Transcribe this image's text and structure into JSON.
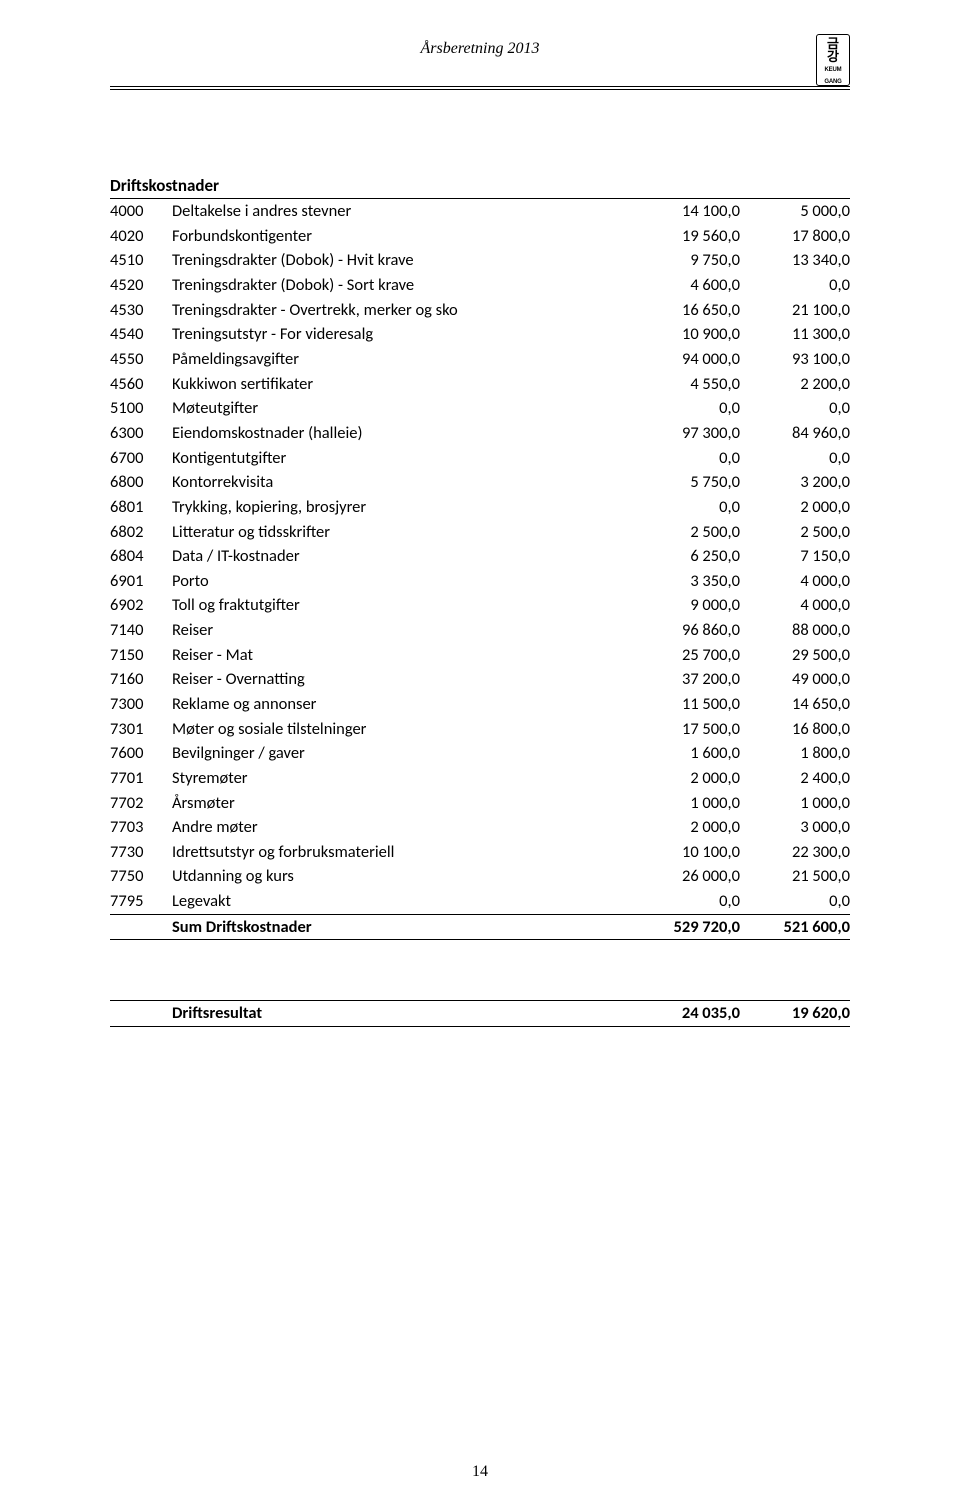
{
  "header": {
    "title": "Årsberetning 2013",
    "logo_glyph_1": "금",
    "logo_glyph_2": "강",
    "logo_text": "KEUM\nGANG"
  },
  "section_title": "Driftskostnader",
  "rows": [
    {
      "code": "4000",
      "desc": "Deltakelse i andres stevner",
      "v1": "14 100,0",
      "v2": "5 000,0"
    },
    {
      "code": "4020",
      "desc": "Forbundskontigenter",
      "v1": "19 560,0",
      "v2": "17 800,0"
    },
    {
      "code": "4510",
      "desc": "Treningsdrakter (Dobok) - Hvit krave",
      "v1": "9 750,0",
      "v2": "13 340,0"
    },
    {
      "code": "4520",
      "desc": "Treningsdrakter (Dobok) - Sort krave",
      "v1": "4 600,0",
      "v2": "0,0"
    },
    {
      "code": "4530",
      "desc": "Treningsdrakter - Overtrekk, merker og sko",
      "v1": "16 650,0",
      "v2": "21 100,0"
    },
    {
      "code": "4540",
      "desc": "Treningsutstyr - For videresalg",
      "v1": "10 900,0",
      "v2": "11 300,0"
    },
    {
      "code": "4550",
      "desc": "Påmeldingsavgifter",
      "v1": "94 000,0",
      "v2": "93 100,0"
    },
    {
      "code": "4560",
      "desc": "Kukkiwon sertifikater",
      "v1": "4 550,0",
      "v2": "2 200,0"
    },
    {
      "code": "5100",
      "desc": "Møteutgifter",
      "v1": "0,0",
      "v2": "0,0"
    },
    {
      "code": "6300",
      "desc": "Eiendomskostnader (halleie)",
      "v1": "97 300,0",
      "v2": "84 960,0"
    },
    {
      "code": "6700",
      "desc": "Kontigentutgifter",
      "v1": "0,0",
      "v2": "0,0"
    },
    {
      "code": "6800",
      "desc": "Kontorrekvisita",
      "v1": "5 750,0",
      "v2": "3 200,0"
    },
    {
      "code": "6801",
      "desc": "Trykking, kopiering, brosjyrer",
      "v1": "0,0",
      "v2": "2 000,0"
    },
    {
      "code": "6802",
      "desc": "Litteratur og tidsskrifter",
      "v1": "2 500,0",
      "v2": "2 500,0"
    },
    {
      "code": "6804",
      "desc": "Data / IT-kostnader",
      "v1": "6 250,0",
      "v2": "7 150,0"
    },
    {
      "code": "6901",
      "desc": "Porto",
      "v1": "3 350,0",
      "v2": "4 000,0"
    },
    {
      "code": "6902",
      "desc": "Toll og fraktutgifter",
      "v1": "9 000,0",
      "v2": "4 000,0"
    },
    {
      "code": "7140",
      "desc": "Reiser",
      "v1": "96 860,0",
      "v2": "88 000,0"
    },
    {
      "code": "7150",
      "desc": "Reiser - Mat",
      "v1": "25 700,0",
      "v2": "29 500,0"
    },
    {
      "code": "7160",
      "desc": "Reiser - Overnatting",
      "v1": "37 200,0",
      "v2": "49 000,0"
    },
    {
      "code": "7300",
      "desc": "Reklame og annonser",
      "v1": "11 500,0",
      "v2": "14 650,0"
    },
    {
      "code": "7301",
      "desc": "Møter og sosiale tilstelninger",
      "v1": "17 500,0",
      "v2": "16 800,0"
    },
    {
      "code": "7600",
      "desc": "Bevilgninger / gaver",
      "v1": "1 600,0",
      "v2": "1 800,0"
    },
    {
      "code": "7701",
      "desc": "Styremøter",
      "v1": "2 000,0",
      "v2": "2 400,0"
    },
    {
      "code": "7702",
      "desc": "Årsmøter",
      "v1": "1 000,0",
      "v2": "1 000,0"
    },
    {
      "code": "7703",
      "desc": "Andre møter",
      "v1": "2 000,0",
      "v2": "3 000,0"
    },
    {
      "code": "7730",
      "desc": "Idrettsutstyr og forbruksmateriell",
      "v1": "10 100,0",
      "v2": "22 300,0"
    },
    {
      "code": "7750",
      "desc": "Utdanning og kurs",
      "v1": "26 000,0",
      "v2": "21 500,0"
    },
    {
      "code": "7795",
      "desc": "Legevakt",
      "v1": "0,0",
      "v2": "0,0"
    }
  ],
  "sum_row": {
    "desc": "Sum Driftskostnader",
    "v1": "529 720,0",
    "v2": "521 600,0"
  },
  "result_row": {
    "desc": "Driftsresultat",
    "v1": "24 035,0",
    "v2": "19 620,0"
  },
  "page_number": "14"
}
